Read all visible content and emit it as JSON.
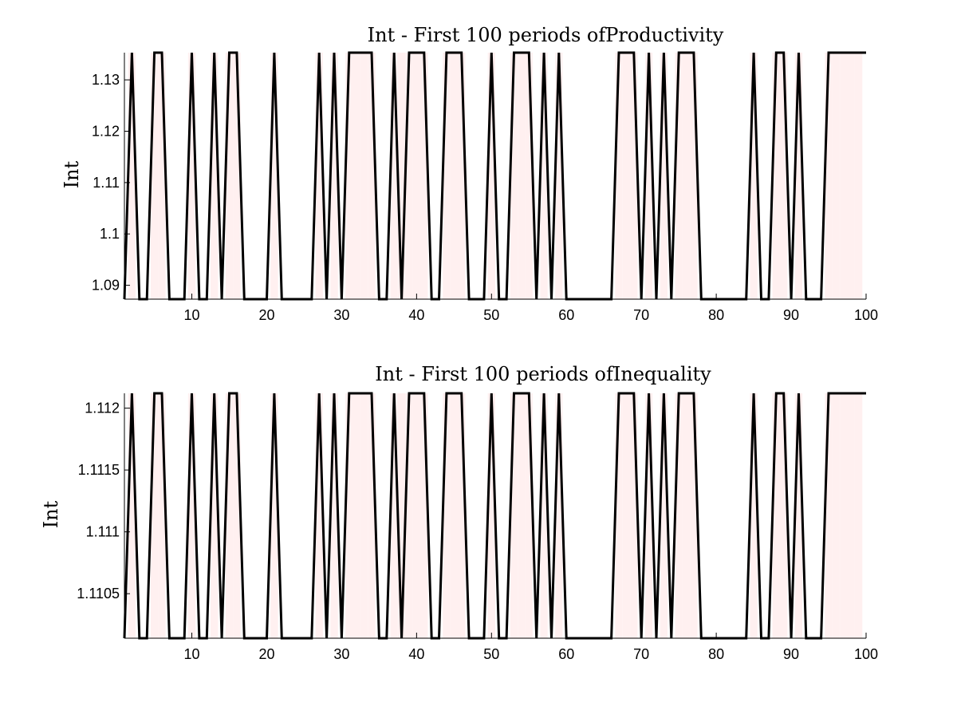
{
  "colors": {
    "background": "#ffffff",
    "line": "#000000",
    "shade": "#fff0f0",
    "axis": "#000000"
  },
  "chart_data": [
    {
      "type": "line",
      "title": "Int - First 100 periods ofProductivity",
      "xlabel": "",
      "ylabel": "Int",
      "xlim": [
        1,
        100
      ],
      "ylim": [
        1.0873,
        1.1353
      ],
      "xticks": [
        10,
        20,
        30,
        40,
        50,
        60,
        70,
        80,
        90,
        100
      ],
      "yticks": [
        1.09,
        1.1,
        1.11,
        1.12,
        1.13
      ],
      "ytick_labels": [
        "1.09",
        "1.1",
        "1.11",
        "1.12",
        "1.13"
      ],
      "grid": false,
      "shaded_periods": [
        2,
        5,
        6,
        10,
        13,
        15,
        16,
        21,
        27,
        29,
        31,
        32,
        33,
        34,
        37,
        38,
        39,
        40,
        41,
        44,
        45,
        46,
        50,
        53,
        54,
        55,
        57,
        59,
        67,
        68,
        69,
        71,
        73,
        75,
        76,
        77,
        85,
        88,
        89,
        91,
        95,
        96,
        97,
        98,
        99
      ],
      "series": [
        {
          "x": [
            1,
            2,
            3,
            4,
            5,
            6,
            7,
            8,
            9,
            10,
            11,
            12,
            13,
            14,
            15,
            16,
            17,
            18,
            19,
            20,
            21,
            22,
            23,
            24,
            25,
            26,
            27,
            28,
            29,
            30,
            31,
            32,
            33,
            34,
            35,
            36,
            37,
            38,
            39,
            40,
            41,
            42,
            43,
            44,
            45,
            46,
            47,
            48,
            49,
            50,
            51,
            52,
            53,
            54,
            55,
            56,
            57,
            58,
            59,
            60,
            61,
            62,
            63,
            64,
            65,
            66,
            67,
            68,
            69,
            70,
            71,
            72,
            73,
            74,
            75,
            76,
            77,
            78,
            79,
            80,
            81,
            82,
            83,
            84,
            85,
            86,
            87,
            88,
            89,
            90,
            91,
            92,
            93,
            94,
            95,
            96,
            97,
            98,
            99,
            100
          ],
          "values": [
            1.0873,
            1.1353,
            1.0873,
            1.0873,
            1.1353,
            1.1353,
            1.0873,
            1.0873,
            1.0873,
            1.1353,
            1.0873,
            1.0873,
            1.1353,
            1.0873,
            1.1353,
            1.1353,
            1.0873,
            1.0873,
            1.0873,
            1.0873,
            1.1353,
            1.0873,
            1.0873,
            1.0873,
            1.0873,
            1.0873,
            1.1353,
            1.0873,
            1.1353,
            1.0873,
            1.1353,
            1.1353,
            1.1353,
            1.1353,
            1.0873,
            1.0873,
            1.1353,
            1.0873,
            1.1353,
            1.1353,
            1.1353,
            1.0873,
            1.0873,
            1.1353,
            1.1353,
            1.1353,
            1.0873,
            1.0873,
            1.0873,
            1.1353,
            1.0873,
            1.0873,
            1.1353,
            1.1353,
            1.1353,
            1.0873,
            1.1353,
            1.0873,
            1.1353,
            1.0873,
            1.0873,
            1.0873,
            1.0873,
            1.0873,
            1.0873,
            1.0873,
            1.1353,
            1.1353,
            1.1353,
            1.0873,
            1.1353,
            1.0873,
            1.1353,
            1.0873,
            1.1353,
            1.1353,
            1.1353,
            1.0873,
            1.0873,
            1.0873,
            1.0873,
            1.0873,
            1.0873,
            1.0873,
            1.1353,
            1.0873,
            1.0873,
            1.1353,
            1.1353,
            1.0873,
            1.1353,
            1.0873,
            1.0873,
            1.0873,
            1.1353,
            1.1353,
            1.1353,
            1.1353,
            1.1353,
            1.1353
          ]
        }
      ]
    },
    {
      "type": "line",
      "title": "Int - First 100 periods ofInequality",
      "xlabel": "",
      "ylabel": "Int",
      "xlim": [
        1,
        100
      ],
      "ylim": [
        1.11014,
        1.11212
      ],
      "xticks": [
        10,
        20,
        30,
        40,
        50,
        60,
        70,
        80,
        90,
        100
      ],
      "yticks": [
        1.1105,
        1.111,
        1.1115,
        1.112
      ],
      "ytick_labels": [
        "1.1105",
        "1.111",
        "1.1115",
        "1.112"
      ],
      "grid": false,
      "shaded_periods": [
        2,
        5,
        6,
        10,
        13,
        15,
        16,
        21,
        27,
        29,
        31,
        32,
        33,
        34,
        37,
        38,
        39,
        40,
        41,
        44,
        45,
        46,
        50,
        53,
        54,
        55,
        57,
        59,
        67,
        68,
        69,
        71,
        73,
        75,
        76,
        77,
        85,
        88,
        89,
        91,
        95,
        96,
        97,
        98,
        99
      ],
      "series": [
        {
          "x": [
            1,
            2,
            3,
            4,
            5,
            6,
            7,
            8,
            9,
            10,
            11,
            12,
            13,
            14,
            15,
            16,
            17,
            18,
            19,
            20,
            21,
            22,
            23,
            24,
            25,
            26,
            27,
            28,
            29,
            30,
            31,
            32,
            33,
            34,
            35,
            36,
            37,
            38,
            39,
            40,
            41,
            42,
            43,
            44,
            45,
            46,
            47,
            48,
            49,
            50,
            51,
            52,
            53,
            54,
            55,
            56,
            57,
            58,
            59,
            60,
            61,
            62,
            63,
            64,
            65,
            66,
            67,
            68,
            69,
            70,
            71,
            72,
            73,
            74,
            75,
            76,
            77,
            78,
            79,
            80,
            81,
            82,
            83,
            84,
            85,
            86,
            87,
            88,
            89,
            90,
            91,
            92,
            93,
            94,
            95,
            96,
            97,
            98,
            99,
            100
          ],
          "values": [
            1.11014,
            1.11212,
            1.11014,
            1.11014,
            1.11212,
            1.11212,
            1.11014,
            1.11014,
            1.11014,
            1.11212,
            1.11014,
            1.11014,
            1.11212,
            1.11014,
            1.11212,
            1.11212,
            1.11014,
            1.11014,
            1.11014,
            1.11014,
            1.11212,
            1.11014,
            1.11014,
            1.11014,
            1.11014,
            1.11014,
            1.11212,
            1.11014,
            1.11212,
            1.11014,
            1.11212,
            1.11212,
            1.11212,
            1.11212,
            1.11014,
            1.11014,
            1.11212,
            1.11014,
            1.11212,
            1.11212,
            1.11212,
            1.11014,
            1.11014,
            1.11212,
            1.11212,
            1.11212,
            1.11014,
            1.11014,
            1.11014,
            1.11212,
            1.11014,
            1.11014,
            1.11212,
            1.11212,
            1.11212,
            1.11014,
            1.11212,
            1.11014,
            1.11212,
            1.11014,
            1.11014,
            1.11014,
            1.11014,
            1.11014,
            1.11014,
            1.11014,
            1.11212,
            1.11212,
            1.11212,
            1.11014,
            1.11212,
            1.11014,
            1.11212,
            1.11014,
            1.11212,
            1.11212,
            1.11212,
            1.11014,
            1.11014,
            1.11014,
            1.11014,
            1.11014,
            1.11014,
            1.11014,
            1.11212,
            1.11014,
            1.11014,
            1.11212,
            1.11212,
            1.11014,
            1.11212,
            1.11014,
            1.11014,
            1.11014,
            1.11212,
            1.11212,
            1.11212,
            1.11212,
            1.11212,
            1.11212
          ]
        }
      ]
    }
  ]
}
